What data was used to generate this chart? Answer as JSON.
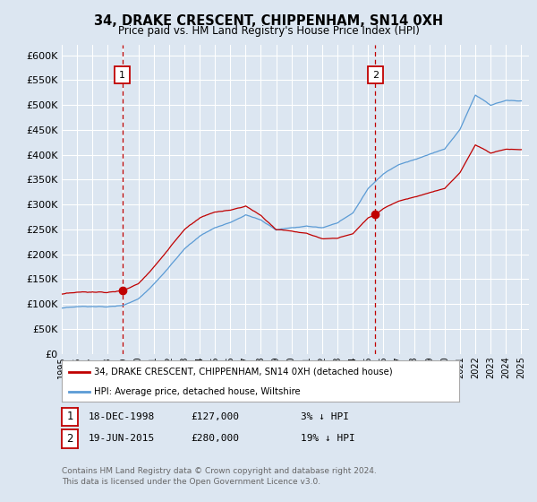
{
  "title": "34, DRAKE CRESCENT, CHIPPENHAM, SN14 0XH",
  "subtitle": "Price paid vs. HM Land Registry's House Price Index (HPI)",
  "background_color": "#dce6f1",
  "legend_label_red": "34, DRAKE CRESCENT, CHIPPENHAM, SN14 0XH (detached house)",
  "legend_label_blue": "HPI: Average price, detached house, Wiltshire",
  "footer": "Contains HM Land Registry data © Crown copyright and database right 2024.\nThis data is licensed under the Open Government Licence v3.0.",
  "ann1": {
    "num": "1",
    "date": "18-DEC-1998",
    "price": "£127,000",
    "hpi": "3% ↓ HPI"
  },
  "ann2": {
    "num": "2",
    "date": "19-JUN-2015",
    "price": "£280,000",
    "hpi": "19% ↓ HPI"
  },
  "ylim": [
    0,
    620000
  ],
  "yticks": [
    0,
    50000,
    100000,
    150000,
    200000,
    250000,
    300000,
    350000,
    400000,
    450000,
    500000,
    550000,
    600000
  ],
  "xlim_start": 1995,
  "xlim_end": 2025.5,
  "marker1_x": 1998.96,
  "marker1_y": 127000,
  "marker2_x": 2015.47,
  "marker2_y": 280000,
  "vline1_x": 1998.96,
  "vline2_x": 2015.47,
  "color_red": "#c00000",
  "color_blue": "#5b9bd5",
  "color_white": "#ffffff",
  "color_grid": "#ffffff",
  "color_footer": "#666666"
}
